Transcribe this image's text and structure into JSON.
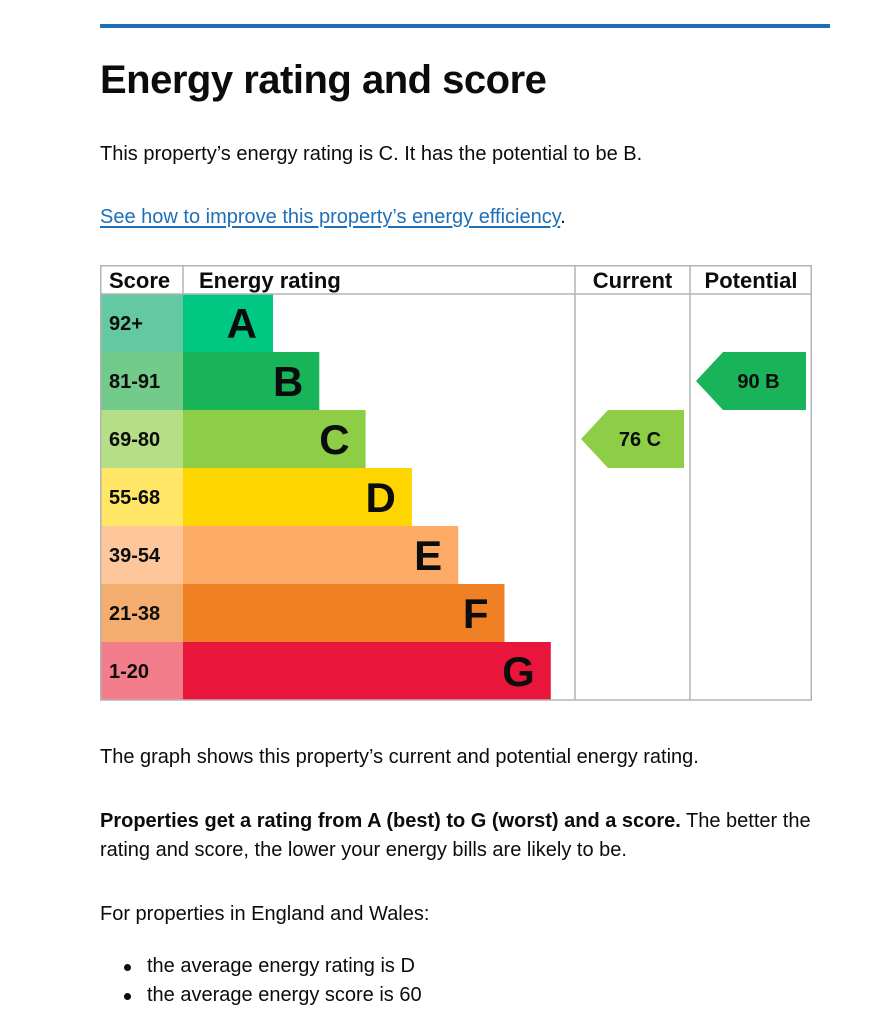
{
  "page": {
    "title": "Energy rating and score",
    "intro": "This property’s energy rating is C. It has the potential to be B.",
    "improve_link": "See how to improve this property’s energy efficiency",
    "improve_suffix": ".",
    "graph_note": "The graph shows this property’s current and potential energy rating.",
    "properties_bold": "Properties get a rating from A (best) to G (worst) and a score.",
    "properties_rest": " The better the rating and score, the lower your energy bills are likely to be.",
    "england_wales": "For properties in England and Wales:",
    "averages": [
      "the average energy rating is D",
      "the average energy score is 60"
    ]
  },
  "chart_data": {
    "type": "bar",
    "headers": {
      "score": "Score",
      "rating": "Energy rating",
      "current": "Current",
      "potential": "Potential"
    },
    "bands": [
      {
        "letter": "A",
        "range": "92+",
        "color": "#00c781",
        "score_bg": "#64c9a2"
      },
      {
        "letter": "B",
        "range": "81-91",
        "color": "#19b459",
        "score_bg": "#72ca8b"
      },
      {
        "letter": "C",
        "range": "69-80",
        "color": "#8dce46",
        "score_bg": "#b4df86"
      },
      {
        "letter": "D",
        "range": "55-68",
        "color": "#ffd500",
        "score_bg": "#ffe666"
      },
      {
        "letter": "E",
        "range": "39-54",
        "color": "#fcaa65",
        "score_bg": "#fdc79b"
      },
      {
        "letter": "F",
        "range": "21-38",
        "color": "#ef8023",
        "score_bg": "#f4ac6f"
      },
      {
        "letter": "G",
        "range": "1-20",
        "color": "#e9153b",
        "score_bg": "#f37d8a"
      }
    ],
    "current": {
      "score": 76,
      "letter": "C",
      "label": "76  C"
    },
    "potential": {
      "score": 90,
      "letter": "B",
      "label": "90  B"
    }
  }
}
